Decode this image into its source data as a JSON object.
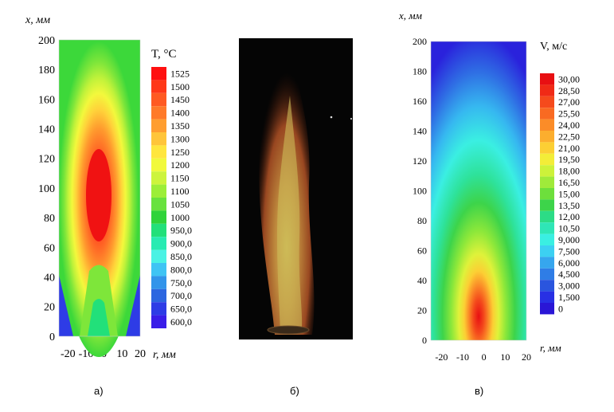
{
  "panels": {
    "a_label": "а)",
    "b_label": "б)",
    "c_label": "в)"
  },
  "chart_data": [
    {
      "type": "heatmap",
      "title": "",
      "xlabel": "r, мм",
      "ylabel": "x, мм",
      "xlim": [
        -25,
        20
      ],
      "ylim": [
        0,
        200
      ],
      "x_ticks": [
        "-20",
        "-10",
        "0",
        "10",
        "20"
      ],
      "y_ticks": [
        "0",
        "20",
        "40",
        "60",
        "80",
        "100",
        "120",
        "140",
        "160",
        "180",
        "200"
      ],
      "legend_title": "T, °C",
      "legend_levels": [
        "1525",
        "1500",
        "1450",
        "1400",
        "1350",
        "1300",
        "1250",
        "1200",
        "1150",
        "1100",
        "1050",
        "1000",
        "950,0",
        "900,0",
        "850,0",
        "800,0",
        "750,0",
        "700,0",
        "650,0",
        "600,0"
      ],
      "legend_colors": [
        "#ff1010",
        "#ff3818",
        "#ff5a22",
        "#ff7a2a",
        "#ff9e30",
        "#ffc53a",
        "#ffe63e",
        "#f1f93c",
        "#cdf43c",
        "#9cee38",
        "#68e23e",
        "#2fd33a",
        "#22e07a",
        "#28ebb2",
        "#4af2e4",
        "#3fc4f4",
        "#3294ea",
        "#2c66e0",
        "#2e3ce6",
        "#3a1de8"
      ],
      "peak": {
        "r": 0,
        "x": 90,
        "value": 1525
      }
    },
    {
      "type": "heatmap",
      "title": "",
      "xlabel": "r, мм",
      "ylabel": "x, мм",
      "xlim": [
        -25,
        20
      ],
      "ylim": [
        0,
        200
      ],
      "x_ticks": [
        "-20",
        "-10",
        "0",
        "10",
        "20"
      ],
      "y_ticks": [
        "0",
        "20",
        "40",
        "60",
        "80",
        "100",
        "120",
        "140",
        "160",
        "180",
        "200"
      ],
      "legend_title": "V, м/с",
      "legend_levels": [
        "30,00",
        "28,50",
        "27,00",
        "25,50",
        "24,00",
        "22,50",
        "21,00",
        "19,50",
        "18,00",
        "16,50",
        "15,00",
        "13,50",
        "12,00",
        "10,50",
        "9,000",
        "7,500",
        "6,000",
        "4,500",
        "3,000",
        "1,500",
        "0"
      ],
      "legend_colors": [
        "#e80f12",
        "#f02a16",
        "#f54a1c",
        "#f96a22",
        "#fb8c28",
        "#fcae2e",
        "#fccf34",
        "#f3ed38",
        "#cdf23a",
        "#a0ea3a",
        "#6ddf3c",
        "#3dd44a",
        "#2cdc86",
        "#2fe6b6",
        "#3aefe2",
        "#3cd0f2",
        "#36a6ee",
        "#2f7de6",
        "#2a55de",
        "#2830e4",
        "#2a16d6"
      ],
      "peak": {
        "r": 0,
        "x": 15,
        "value": 30
      }
    }
  ]
}
